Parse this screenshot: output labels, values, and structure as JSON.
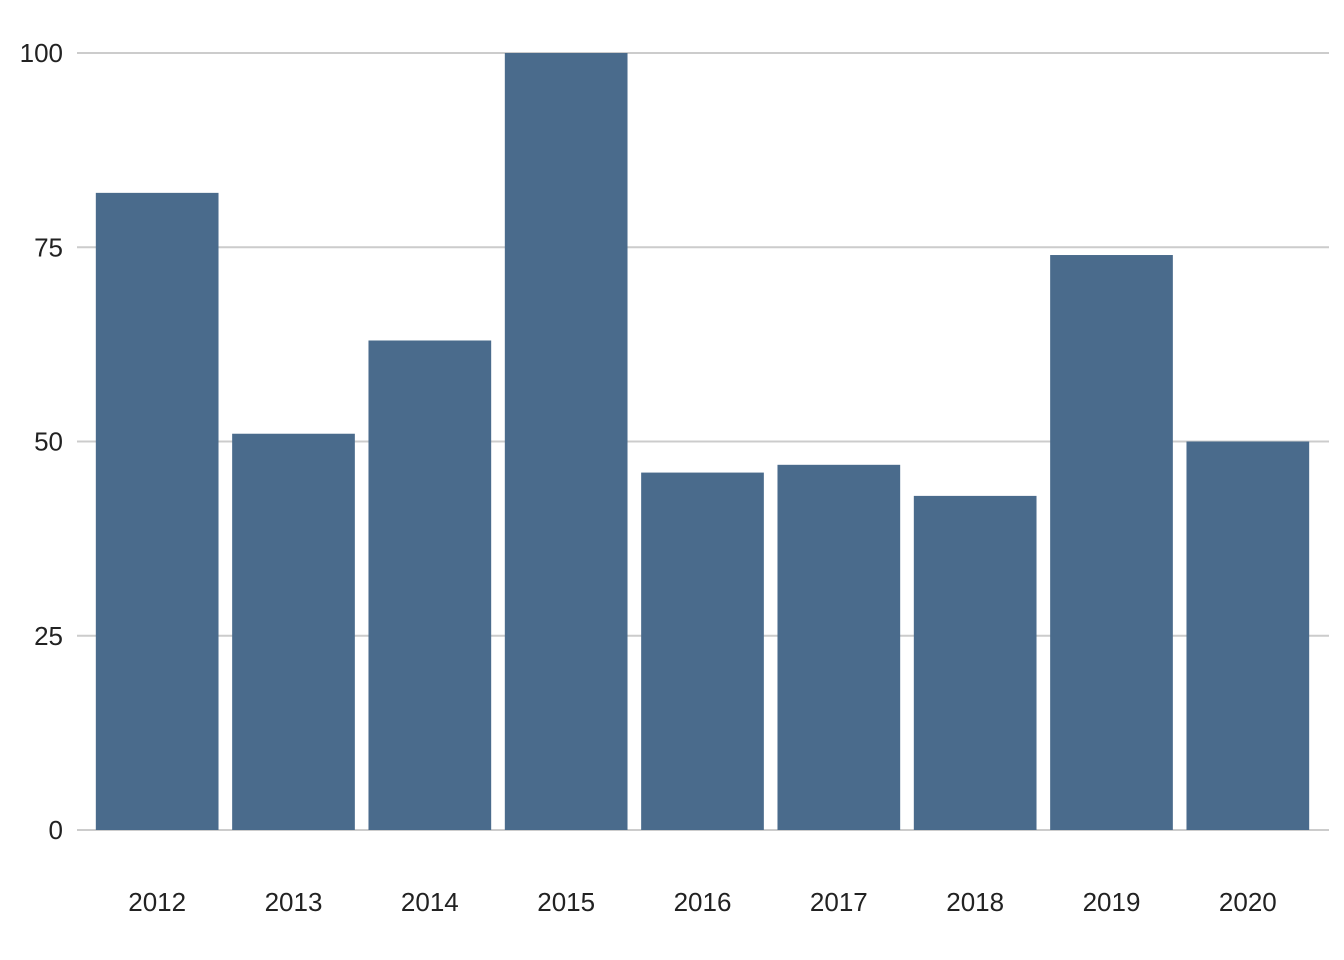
{
  "chart_data": {
    "type": "bar",
    "title": "",
    "xlabel": "",
    "ylabel": "",
    "categories": [
      "2012",
      "2013",
      "2014",
      "2015",
      "2016",
      "2017",
      "2018",
      "2019",
      "2020"
    ],
    "values": [
      82,
      51,
      63,
      100,
      46,
      47,
      43,
      74,
      50
    ],
    "ylim": [
      0,
      100
    ],
    "yticks": [
      0,
      25,
      50,
      75,
      100
    ],
    "grid": true,
    "legend": "none",
    "colors": {
      "bar": "#4a6b8c",
      "grid": "#cccccc",
      "text": "#222222"
    }
  }
}
